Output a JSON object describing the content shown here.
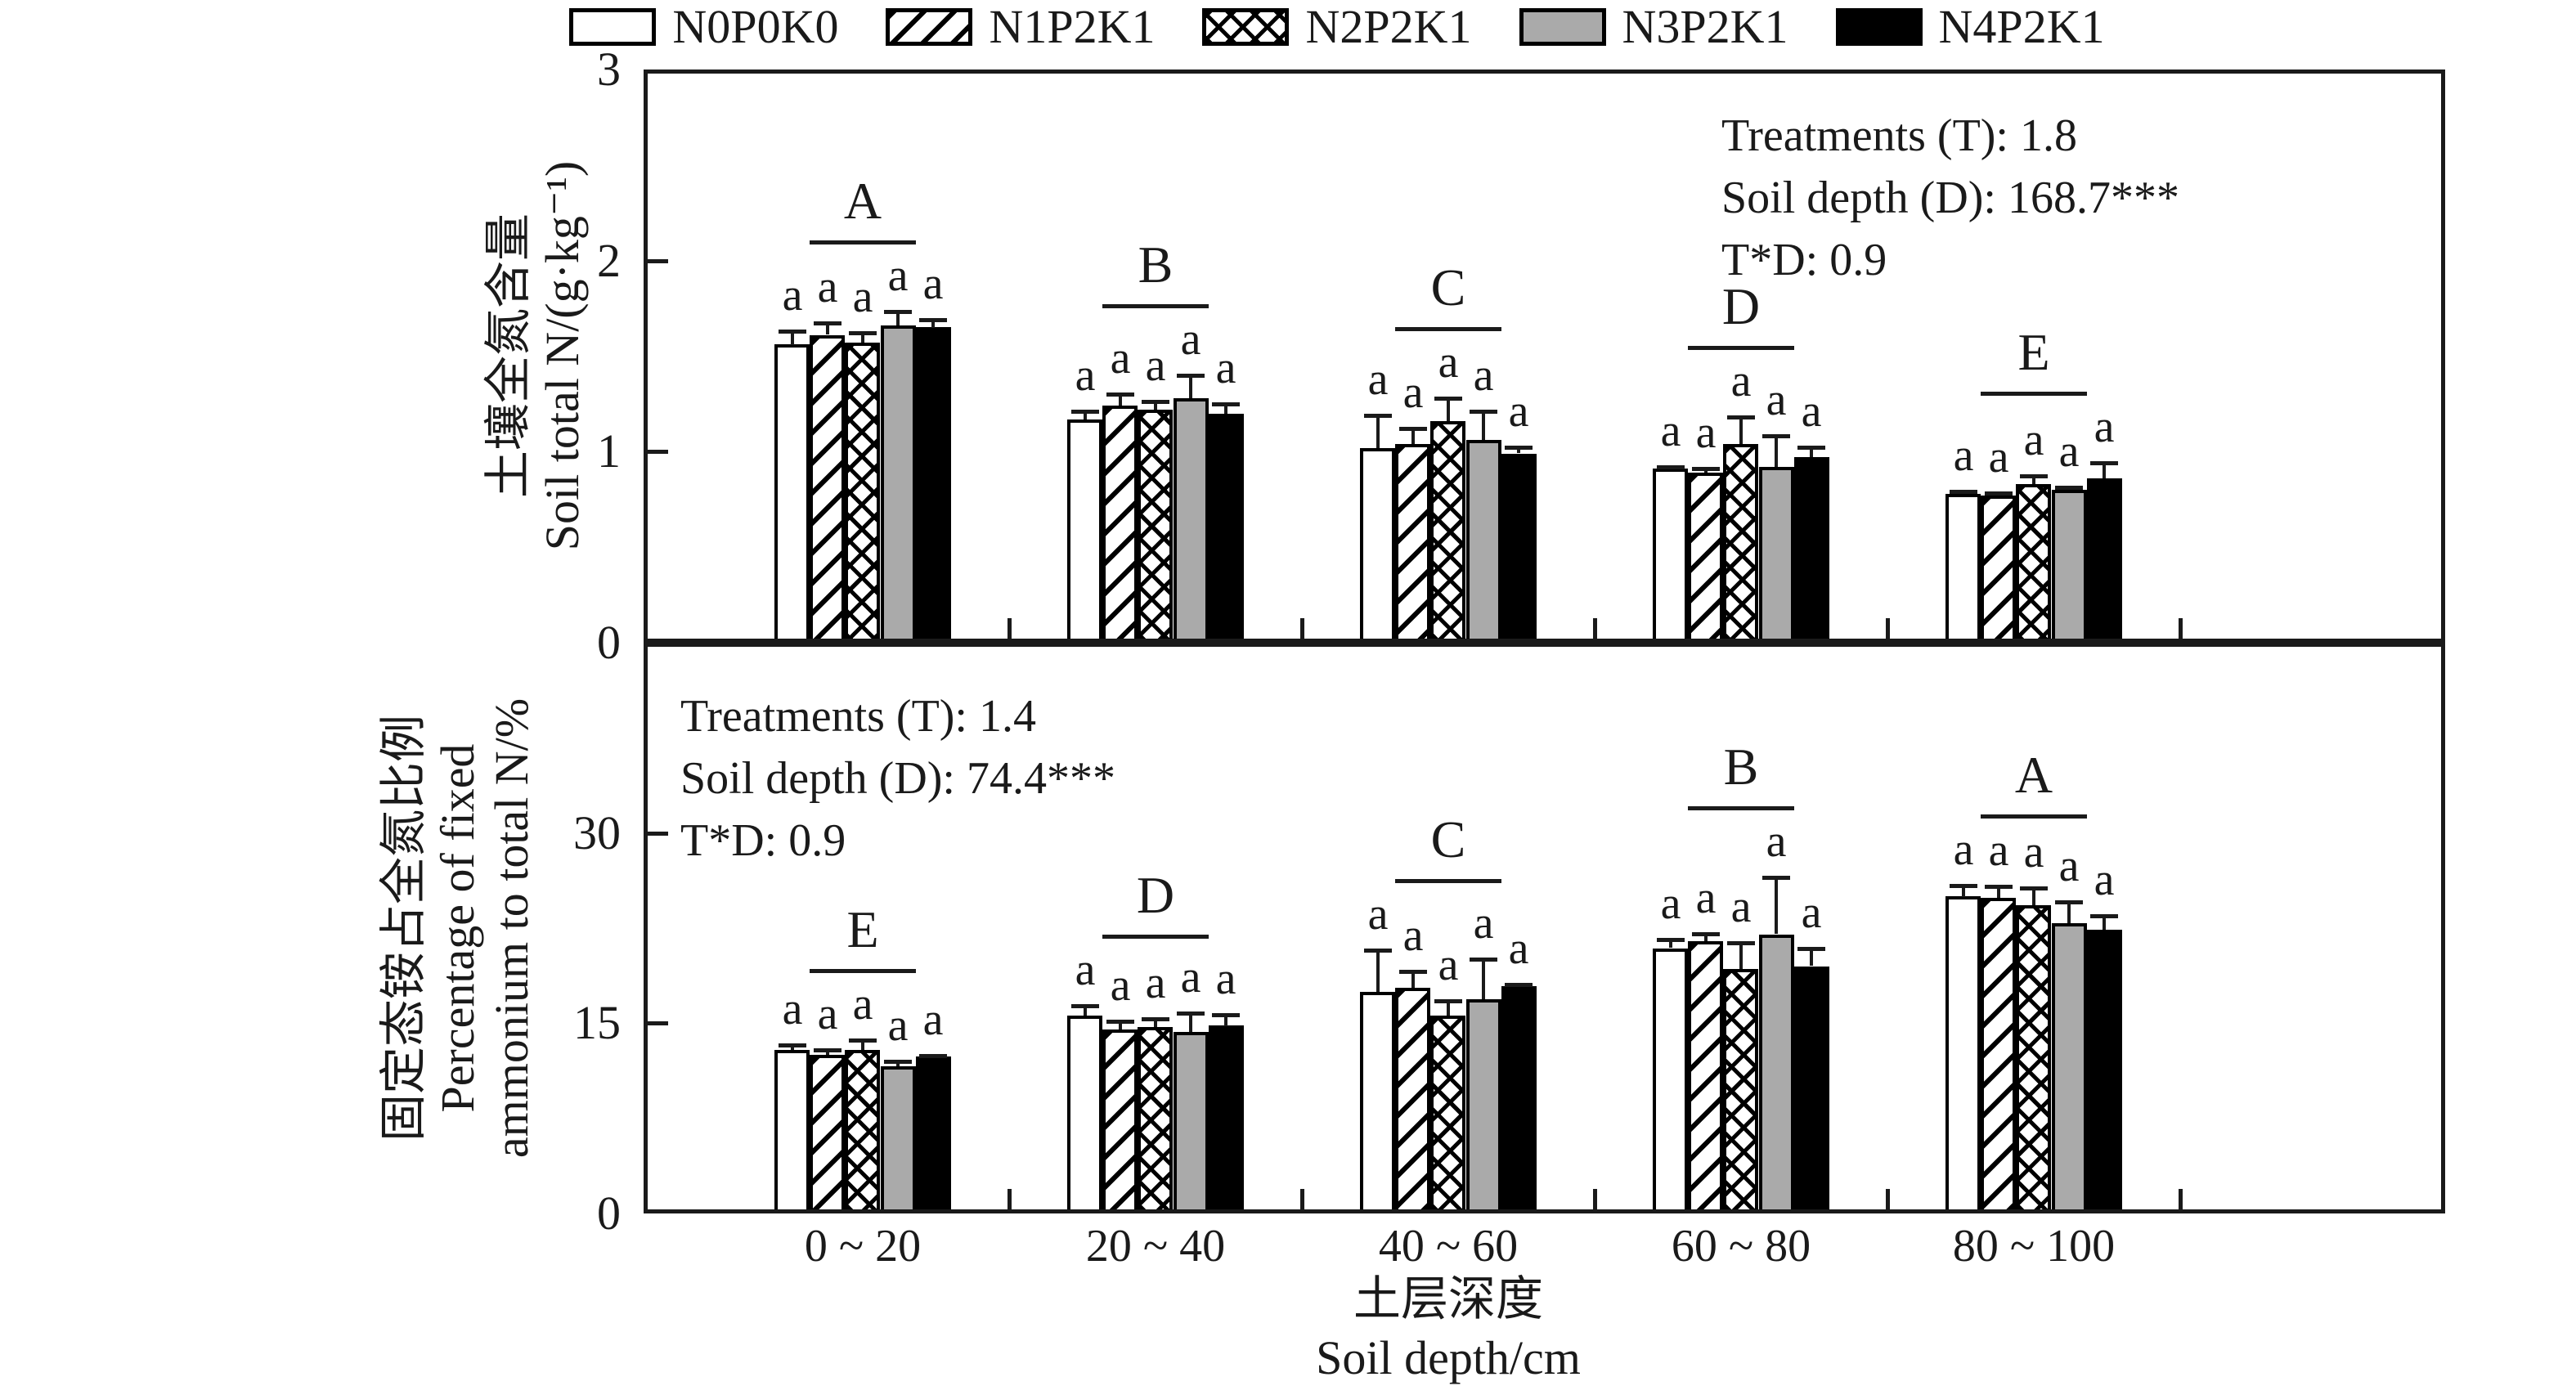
{
  "figure": {
    "ink_color": "#1a1a1a",
    "gray_fill": "#aaaaaa",
    "background": "#ffffff"
  },
  "legend": {
    "items": [
      {
        "label": "N0P0K0",
        "pattern": "plain"
      },
      {
        "label": "N1P2K1",
        "pattern": "diag"
      },
      {
        "label": "N2P2K1",
        "pattern": "cross"
      },
      {
        "label": "N3P2K1",
        "pattern": "gray"
      },
      {
        "label": "N4P2K1",
        "pattern": "solid"
      }
    ]
  },
  "xaxis": {
    "categories": [
      "0 ~ 20",
      "20 ~ 40",
      "40 ~ 60",
      "60 ~ 80",
      "80 ~ 100"
    ],
    "title_zh": "土层深度",
    "title_en": "Soil depth/cm"
  },
  "chart_data": [
    {
      "type": "bar",
      "panel": "top",
      "ylabel_zh": "土壤全氮含量",
      "ylabel_en_lines": [
        "Soil total N/(g·kg⁻¹)"
      ],
      "ylim": [
        0,
        3
      ],
      "yticks": [
        0,
        1,
        2,
        3
      ],
      "grid": false,
      "legend_position": "top-center",
      "categories": [
        "0 ~ 20",
        "20 ~ 40",
        "40 ~ 60",
        "60 ~ 80",
        "80 ~ 100"
      ],
      "group_letters": [
        "A",
        "B",
        "C",
        "D",
        "E"
      ],
      "bar_letter": "a",
      "series": [
        {
          "name": "N0P0K0",
          "pattern": "plain",
          "values": [
            1.56,
            1.17,
            1.02,
            0.91,
            0.78
          ],
          "errors": [
            0.08,
            0.05,
            0.18,
            0.02,
            0.02
          ]
        },
        {
          "name": "N1P2K1",
          "pattern": "diag",
          "values": [
            1.61,
            1.24,
            1.04,
            0.89,
            0.77
          ],
          "errors": [
            0.07,
            0.07,
            0.09,
            0.03,
            0.02
          ]
        },
        {
          "name": "N2P2K1",
          "pattern": "cross",
          "values": [
            1.57,
            1.22,
            1.16,
            1.04,
            0.83
          ],
          "errors": [
            0.06,
            0.05,
            0.13,
            0.15,
            0.05
          ]
        },
        {
          "name": "N3P2K1",
          "pattern": "gray",
          "values": [
            1.66,
            1.28,
            1.06,
            0.92,
            0.8
          ],
          "errors": [
            0.08,
            0.13,
            0.16,
            0.17,
            0.02
          ]
        },
        {
          "name": "N4P2K1",
          "pattern": "solid",
          "values": [
            1.65,
            1.2,
            0.99,
            0.97,
            0.86
          ],
          "errors": [
            0.05,
            0.06,
            0.04,
            0.06,
            0.09
          ]
        }
      ],
      "annotation_lines": [
        "Treatments (T): 1.8",
        "Soil depth (D): 168.7***",
        "T*D: 0.9"
      ],
      "annotation_position": "top-right"
    },
    {
      "type": "bar",
      "panel": "bottom",
      "ylabel_zh": "固定态铵占全氮比例",
      "ylabel_en_lines": [
        "Percentage of fixed",
        "ammonium to total N/%"
      ],
      "ylim": [
        0,
        45
      ],
      "yticks": [
        0,
        15,
        30
      ],
      "grid": false,
      "categories": [
        "0 ~ 20",
        "20 ~ 40",
        "40 ~ 60",
        "60 ~ 80",
        "80 ~ 100"
      ],
      "group_letters": [
        "E",
        "D",
        "C",
        "B",
        "A"
      ],
      "bar_letter": "a",
      "series": [
        {
          "name": "N0P0K0",
          "pattern": "plain",
          "values": [
            12.9,
            15.6,
            17.5,
            20.9,
            25.0
          ],
          "errors": [
            0.5,
            0.9,
            3.4,
            0.8,
            1.0
          ]
        },
        {
          "name": "N1P2K1",
          "pattern": "diag",
          "values": [
            12.5,
            14.5,
            17.8,
            21.5,
            24.9
          ],
          "errors": [
            0.5,
            0.8,
            1.4,
            0.7,
            1.0
          ]
        },
        {
          "name": "N2P2K1",
          "pattern": "cross",
          "values": [
            12.9,
            14.7,
            15.6,
            19.3,
            24.3
          ],
          "errors": [
            0.9,
            0.8,
            1.3,
            2.2,
            1.5
          ]
        },
        {
          "name": "N3P2K1",
          "pattern": "gray",
          "values": [
            11.6,
            14.3,
            16.9,
            22.0,
            22.9
          ],
          "errors": [
            0.5,
            1.6,
            3.3,
            4.6,
            1.8
          ]
        },
        {
          "name": "N4P2K1",
          "pattern": "solid",
          "values": [
            12.4,
            14.8,
            17.9,
            19.5,
            22.4
          ],
          "errors": [
            0.2,
            1.0,
            0.3,
            1.5,
            1.2
          ]
        }
      ],
      "annotation_lines": [
        "Treatments (T): 1.4",
        "Soil depth (D): 74.4***",
        "T*D: 0.9"
      ],
      "annotation_position": "top-left"
    }
  ]
}
